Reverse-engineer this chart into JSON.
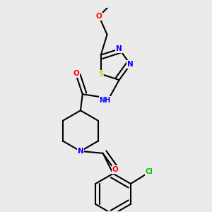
{
  "background_color": "#ebebeb",
  "bond_color": "#000000",
  "atom_colors": {
    "O": "#ff0000",
    "N": "#0000ff",
    "S": "#cccc00",
    "Cl": "#00bb00",
    "C": "#000000",
    "H": "#888888"
  }
}
